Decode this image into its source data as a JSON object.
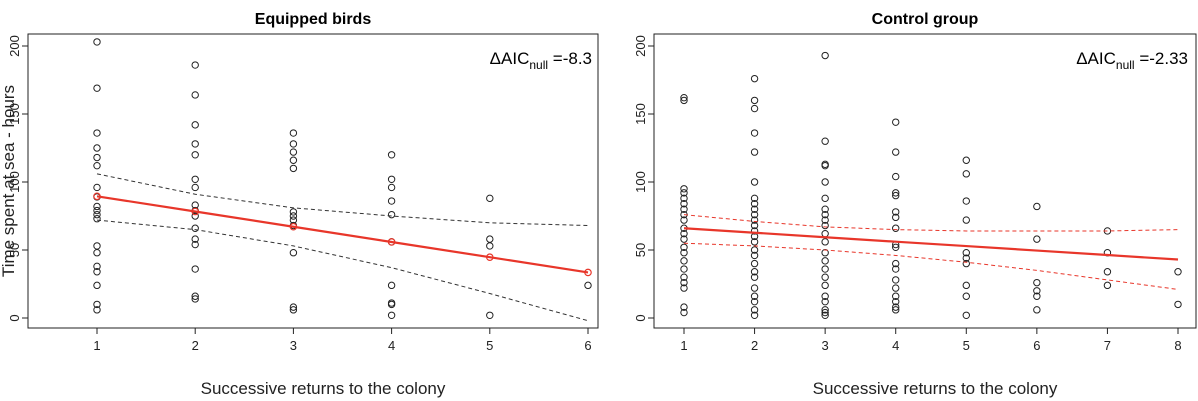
{
  "chart_data": [
    {
      "type": "scatter",
      "title": "Equipped birds",
      "xlabel": "Successive returns to the colony",
      "ylabel": "Time spent at sea - hours",
      "xlim": [
        1,
        6
      ],
      "ylim": [
        0,
        200
      ],
      "x_ticks": [
        1,
        2,
        3,
        4,
        5,
        6
      ],
      "y_ticks": [
        0,
        50,
        100,
        150,
        200
      ],
      "annotation": {
        "prefix": "ΔAIC",
        "sub": "null",
        "value": " =-8.3"
      },
      "points": [
        [
          1,
          203
        ],
        [
          1,
          169
        ],
        [
          1,
          136
        ],
        [
          1,
          125
        ],
        [
          1,
          118
        ],
        [
          1,
          112
        ],
        [
          1,
          96
        ],
        [
          1,
          89
        ],
        [
          1,
          82
        ],
        [
          1,
          79
        ],
        [
          1,
          76
        ],
        [
          1,
          73
        ],
        [
          1,
          53
        ],
        [
          1,
          48
        ],
        [
          1,
          38
        ],
        [
          1,
          34
        ],
        [
          1,
          24
        ],
        [
          1,
          10
        ],
        [
          1,
          6
        ],
        [
          2,
          186
        ],
        [
          2,
          164
        ],
        [
          2,
          142
        ],
        [
          2,
          128
        ],
        [
          2,
          120
        ],
        [
          2,
          102
        ],
        [
          2,
          96
        ],
        [
          2,
          83
        ],
        [
          2,
          79
        ],
        [
          2,
          75
        ],
        [
          2,
          66
        ],
        [
          2,
          58
        ],
        [
          2,
          54
        ],
        [
          2,
          36
        ],
        [
          2,
          16
        ],
        [
          2,
          14
        ],
        [
          3,
          136
        ],
        [
          3,
          128
        ],
        [
          3,
          122
        ],
        [
          3,
          116
        ],
        [
          3,
          110
        ],
        [
          3,
          78
        ],
        [
          3,
          75
        ],
        [
          3,
          72
        ],
        [
          3,
          68
        ],
        [
          3,
          48
        ],
        [
          3,
          8
        ],
        [
          3,
          6
        ],
        [
          4,
          120
        ],
        [
          4,
          102
        ],
        [
          4,
          96
        ],
        [
          4,
          86
        ],
        [
          4,
          76
        ],
        [
          4,
          56
        ],
        [
          4,
          24
        ],
        [
          4,
          11
        ],
        [
          4,
          10
        ],
        [
          4,
          2
        ],
        [
          5,
          88
        ],
        [
          5,
          58
        ],
        [
          5,
          53
        ],
        [
          5,
          2
        ],
        [
          6,
          24
        ]
      ],
      "fit": {
        "x": [
          1,
          2,
          3,
          4,
          5,
          6
        ],
        "y": [
          89.5,
          78.3,
          67.1,
          55.9,
          44.7,
          33.5
        ],
        "ci_upper": [
          106,
          91,
          81,
          75,
          70,
          68
        ],
        "ci_lower": [
          72,
          65,
          53,
          37,
          18,
          -2
        ],
        "ci_style": "dashed-black"
      }
    },
    {
      "type": "scatter",
      "title": "Control group",
      "xlabel": "Successive returns to the colony",
      "ylabel": "",
      "xlim": [
        1,
        8
      ],
      "ylim": [
        0,
        200
      ],
      "x_ticks": [
        1,
        2,
        3,
        4,
        5,
        6,
        7,
        8
      ],
      "y_ticks": [
        0,
        50,
        100,
        150,
        200
      ],
      "annotation": {
        "prefix": "ΔAIC",
        "sub": "null",
        "value": " =-2.33"
      },
      "points": [
        [
          1,
          162
        ],
        [
          1,
          160
        ],
        [
          1,
          95
        ],
        [
          1,
          92
        ],
        [
          1,
          88
        ],
        [
          1,
          84
        ],
        [
          1,
          80
        ],
        [
          1,
          76
        ],
        [
          1,
          72
        ],
        [
          1,
          66
        ],
        [
          1,
          62
        ],
        [
          1,
          58
        ],
        [
          1,
          52
        ],
        [
          1,
          48
        ],
        [
          1,
          42
        ],
        [
          1,
          36
        ],
        [
          1,
          30
        ],
        [
          1,
          26
        ],
        [
          1,
          22
        ],
        [
          1,
          8
        ],
        [
          1,
          4
        ],
        [
          2,
          176
        ],
        [
          2,
          160
        ],
        [
          2,
          154
        ],
        [
          2,
          136
        ],
        [
          2,
          122
        ],
        [
          2,
          100
        ],
        [
          2,
          88
        ],
        [
          2,
          84
        ],
        [
          2,
          80
        ],
        [
          2,
          76
        ],
        [
          2,
          72
        ],
        [
          2,
          68
        ],
        [
          2,
          64
        ],
        [
          2,
          60
        ],
        [
          2,
          56
        ],
        [
          2,
          50
        ],
        [
          2,
          46
        ],
        [
          2,
          40
        ],
        [
          2,
          34
        ],
        [
          2,
          30
        ],
        [
          2,
          22
        ],
        [
          2,
          16
        ],
        [
          2,
          12
        ],
        [
          2,
          6
        ],
        [
          2,
          2
        ],
        [
          3,
          193
        ],
        [
          3,
          130
        ],
        [
          3,
          113
        ],
        [
          3,
          112
        ],
        [
          3,
          100
        ],
        [
          3,
          88
        ],
        [
          3,
          80
        ],
        [
          3,
          76
        ],
        [
          3,
          72
        ],
        [
          3,
          68
        ],
        [
          3,
          62
        ],
        [
          3,
          56
        ],
        [
          3,
          48
        ],
        [
          3,
          42
        ],
        [
          3,
          36
        ],
        [
          3,
          30
        ],
        [
          3,
          24
        ],
        [
          3,
          16
        ],
        [
          3,
          12
        ],
        [
          3,
          6
        ],
        [
          3,
          4
        ],
        [
          3,
          2
        ],
        [
          4,
          144
        ],
        [
          4,
          122
        ],
        [
          4,
          104
        ],
        [
          4,
          92
        ],
        [
          4,
          90
        ],
        [
          4,
          78
        ],
        [
          4,
          74
        ],
        [
          4,
          66
        ],
        [
          4,
          54
        ],
        [
          4,
          52
        ],
        [
          4,
          40
        ],
        [
          4,
          36
        ],
        [
          4,
          28
        ],
        [
          4,
          22
        ],
        [
          4,
          16
        ],
        [
          4,
          12
        ],
        [
          4,
          8
        ],
        [
          4,
          6
        ],
        [
          5,
          116
        ],
        [
          5,
          106
        ],
        [
          5,
          86
        ],
        [
          5,
          72
        ],
        [
          5,
          48
        ],
        [
          5,
          44
        ],
        [
          5,
          40
        ],
        [
          5,
          24
        ],
        [
          5,
          16
        ],
        [
          5,
          2
        ],
        [
          6,
          82
        ],
        [
          6,
          58
        ],
        [
          6,
          26
        ],
        [
          6,
          20
        ],
        [
          6,
          16
        ],
        [
          6,
          6
        ],
        [
          7,
          64
        ],
        [
          7,
          48
        ],
        [
          7,
          34
        ],
        [
          7,
          24
        ],
        [
          8,
          34
        ],
        [
          8,
          10
        ]
      ],
      "fit": {
        "x": [
          1,
          2,
          3,
          4,
          5,
          6,
          7,
          8
        ],
        "y": [
          66,
          62.7,
          59.4,
          56.1,
          52.9,
          49.6,
          46.3,
          43
        ],
        "ci_upper": [
          76,
          71,
          67,
          65,
          64,
          64,
          64,
          65
        ],
        "ci_lower": [
          55,
          53,
          50,
          46,
          41,
          35,
          28,
          21
        ],
        "ci_style": "dashed-red"
      }
    }
  ]
}
